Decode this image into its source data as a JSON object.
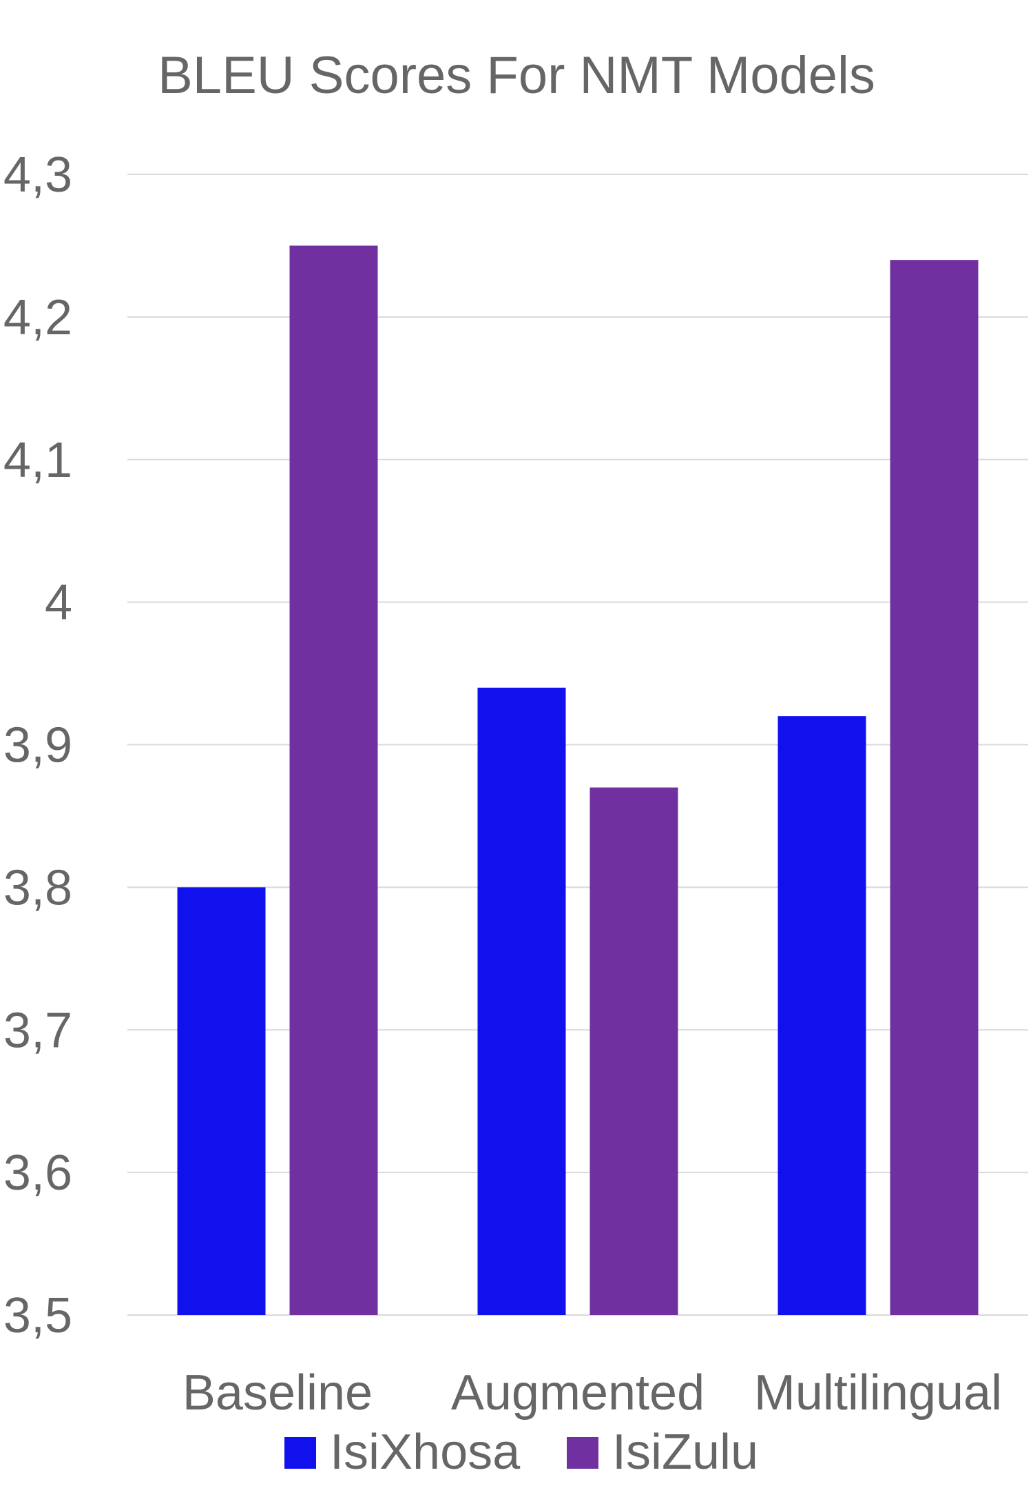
{
  "chart_data": {
    "type": "bar",
    "title": "BLEU Scores For NMT Models",
    "categories": [
      "Baseline",
      "Augmented",
      "Multilingual"
    ],
    "series": [
      {
        "name": "IsiXhosa",
        "values": [
          3.8,
          3.94,
          3.92
        ],
        "color": "#1111ee"
      },
      {
        "name": "IsiZulu",
        "values": [
          4.25,
          3.87,
          4.24
        ],
        "color": "#7030a0"
      }
    ],
    "ylim": [
      3.5,
      4.3
    ],
    "yticks": [
      3.5,
      3.6,
      3.7,
      3.8,
      3.9,
      4.0,
      4.1,
      4.2,
      4.3
    ],
    "ytick_labels": [
      "3,5",
      "3,6",
      "3,7",
      "3,8",
      "3,9",
      "4",
      "4,1",
      "4,2",
      "4,3"
    ],
    "xlabel": "",
    "ylabel": "",
    "grid": true,
    "legend_position": "bottom",
    "colors": {
      "text": "#666666",
      "grid": "#d9d9d9"
    }
  }
}
